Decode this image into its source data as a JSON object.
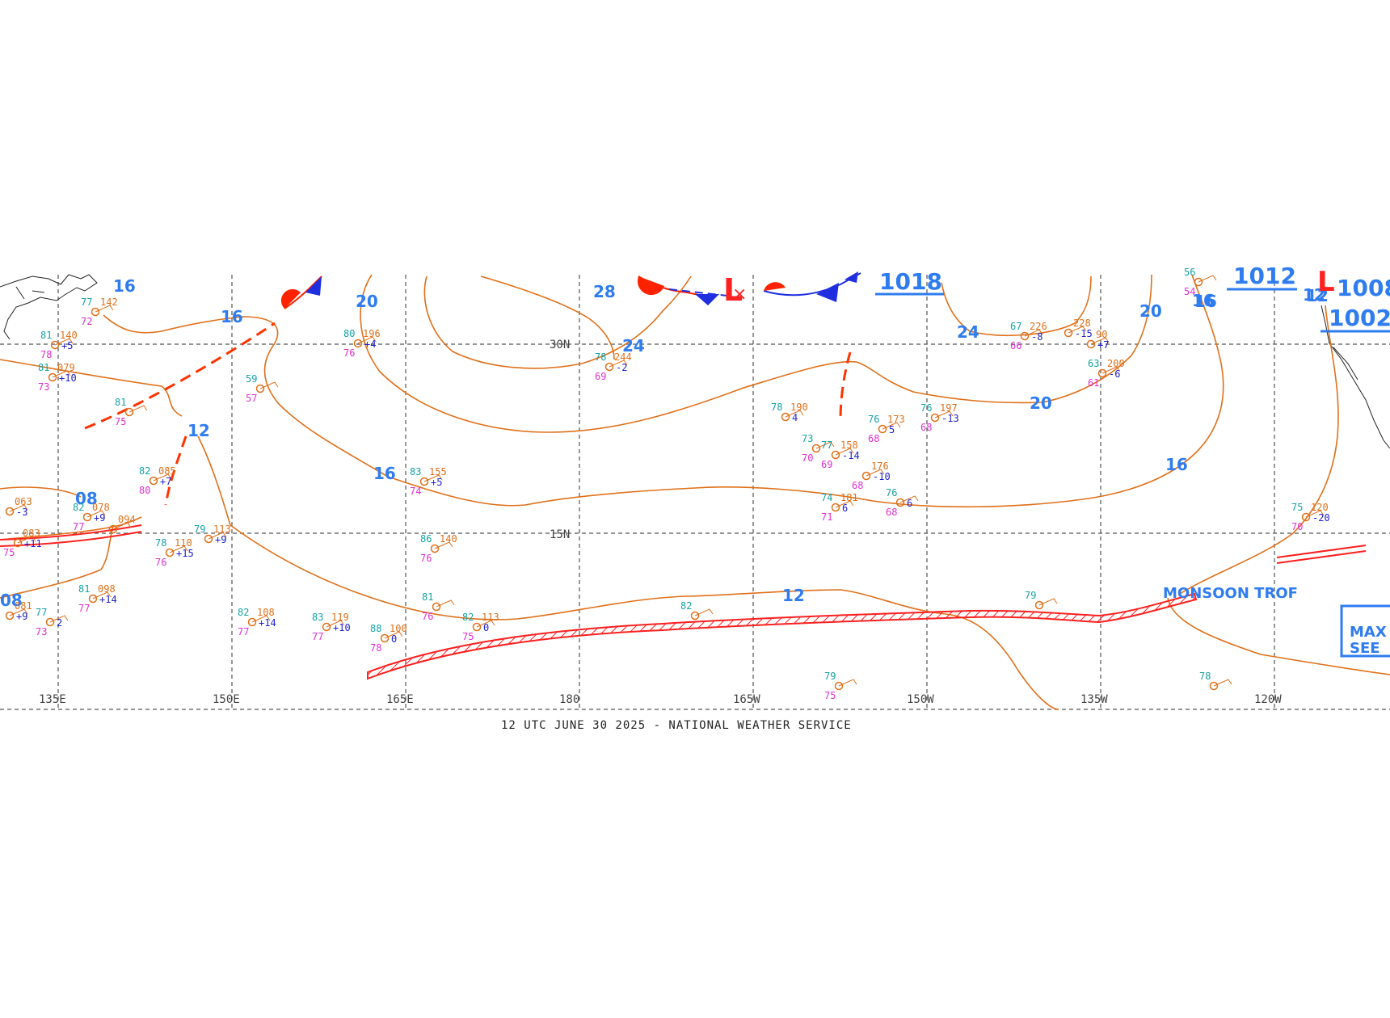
{
  "caption": "12 UTC JUNE 30 2025 - NATIONAL WEATHER SERVICE",
  "latitude_labels": [
    "30N",
    "15N"
  ],
  "longitude_labels": [
    "135E",
    "150E",
    "165E",
    "180",
    "165W",
    "150W",
    "135W",
    "120W"
  ],
  "isobar_labels": [
    "16",
    "16",
    "20",
    "28",
    "24",
    "24",
    "20",
    "20",
    "16",
    "12",
    "16",
    "16",
    "12",
    "08",
    "08",
    "12",
    "12",
    "16"
  ],
  "pressure_centers": [
    {
      "label": "L",
      "value": "1018"
    },
    {
      "label": "",
      "value": "1012"
    },
    {
      "label": "L",
      "value": "1008"
    },
    {
      "label": "",
      "value": "1002"
    }
  ],
  "features": {
    "monsoon_trough": "MONSOON TROF",
    "see_box_1": "SEE",
    "see_box_2": "MAX"
  },
  "stations": [
    {
      "temp": "77",
      "hgt": "142",
      "dew": "72"
    },
    {
      "temp": "81",
      "hgt": "140",
      "dew": "78",
      "tend": "+5"
    },
    {
      "temp": "81",
      "hgt": "079",
      "dew": "73",
      "tend": "+10"
    },
    {
      "temp": "81",
      "hgt": "",
      "dew": "75"
    },
    {
      "temp": "82",
      "hgt": "085",
      "dew": "80",
      "tend": "+7"
    },
    {
      "temp": "2",
      "hgt": "063",
      "dew": "7",
      "tend": "-3"
    },
    {
      "temp": "82",
      "hgt": "078",
      "dew": "77",
      "tend": "+9"
    },
    {
      "temp": "",
      "hgt": "094",
      "dew": ""
    },
    {
      "temp": "",
      "hgt": "083",
      "dew": "75",
      "tend": "+11"
    },
    {
      "temp": "78",
      "hgt": "110",
      "dew": "76",
      "tend": "+15"
    },
    {
      "temp": "79",
      "hgt": "113",
      "dew": "",
      "tend": "+9"
    },
    {
      "temp": "81",
      "hgt": "098",
      "dew": "77",
      "tend": "+14"
    },
    {
      "temp": "",
      "hgt": "081",
      "dew": "",
      "tend": "+9"
    },
    {
      "temp": "77",
      "hgt": "",
      "dew": "73",
      "tend": "2"
    },
    {
      "temp": "82",
      "hgt": "108",
      "dew": "77",
      "tend": "+14"
    },
    {
      "temp": "83",
      "hgt": "119",
      "dew": "77",
      "tend": "+10"
    },
    {
      "temp": "88",
      "hgt": "100",
      "dew": "78",
      "tend": "0"
    },
    {
      "temp": "82",
      "hgt": "113",
      "dew": "75",
      "tend": "0"
    },
    {
      "temp": "81",
      "hgt": "",
      "dew": "76"
    },
    {
      "temp": "86",
      "hgt": "140",
      "dew": "76"
    },
    {
      "temp": "83",
      "hgt": "155",
      "dew": "74",
      "tend": "+5"
    },
    {
      "temp": "59",
      "hgt": "",
      "dew": "57"
    },
    {
      "temp": "80",
      "hgt": "196",
      "dew": "76",
      "tend": "+4"
    },
    {
      "temp": "78",
      "hgt": "244",
      "dew": "69",
      "tend": "-2"
    },
    {
      "temp": "78",
      "hgt": "190",
      "dew": "",
      "tend": "4"
    },
    {
      "temp": "73",
      "hgt": "",
      "dew": "70"
    },
    {
      "temp": "77",
      "hgt": "158",
      "dew": "69",
      "tend": "-14"
    },
    {
      "temp": "76",
      "hgt": "173",
      "dew": "68",
      "tend": "5"
    },
    {
      "temp": "",
      "hgt": "176",
      "dew": "68",
      "tend": "-10"
    },
    {
      "temp": "74",
      "hgt": "181",
      "dew": "71",
      "tend": "6"
    },
    {
      "temp": "76",
      "hgt": "",
      "dew": "68",
      "tend": "6"
    },
    {
      "temp": "76",
      "hgt": "197",
      "dew": "68",
      "tend": "-13"
    },
    {
      "temp": "67",
      "hgt": "226",
      "dew": "66",
      "tend": "-8"
    },
    {
      "temp": "",
      "hgt": "228",
      "dew": "",
      "tend": "-15"
    },
    {
      "temp": "",
      "hgt": "90",
      "dew": "",
      "tend": "+7"
    },
    {
      "temp": "63",
      "hgt": "200",
      "dew": "61",
      "tend": "-6"
    },
    {
      "temp": "82",
      "hgt": "",
      "dew": ""
    },
    {
      "temp": "79",
      "hgt": "",
      "dew": ""
    },
    {
      "temp": "79",
      "hgt": "",
      "dew": "75"
    },
    {
      "temp": "75",
      "hgt": "120",
      "dew": "70",
      "tend": "-20"
    },
    {
      "temp": "78",
      "hgt": "",
      "dew": ""
    },
    {
      "temp": "56",
      "hgt": "",
      "dew": "54"
    }
  ],
  "colors": {
    "isobar": "#e0701a",
    "isobar_label": "#2f7cf0",
    "front_red": "#ff2200",
    "front_blue": "#1f2fe0",
    "grid": "#555555",
    "itcz": "#ff2020"
  }
}
